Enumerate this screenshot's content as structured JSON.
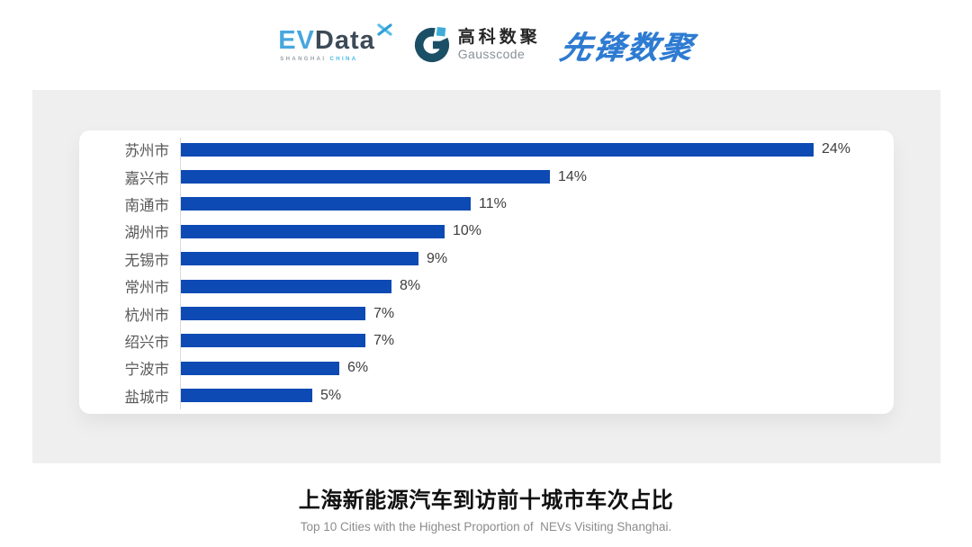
{
  "header": {
    "evdata": {
      "ev": "EV",
      "data": "Data",
      "sub1": "SHANGHAI ",
      "sub2": "CHINA"
    },
    "gausscode": {
      "cn": "高科数聚",
      "en": "Gausscode"
    },
    "xianfeng": {
      "text": "先锋数聚"
    }
  },
  "chart_data": {
    "type": "bar",
    "orientation": "horizontal",
    "title": "上海新能源汽车到访前十城市车次占比",
    "subtitle": "Top 10 Cities with the Highest Proportion of  NEVs Visiting Shanghai.",
    "categories": [
      "苏州市",
      "嘉兴市",
      "南通市",
      "湖州市",
      "无锡市",
      "常州市",
      "杭州市",
      "绍兴市",
      "宁波市",
      "盐城市"
    ],
    "values": [
      24,
      14,
      11,
      10,
      9,
      8,
      7,
      7,
      6,
      5
    ],
    "value_labels": [
      "24%",
      "14%",
      "11%",
      "10%",
      "9%",
      "8%",
      "7%",
      "7%",
      "6%",
      "5%"
    ],
    "xlim": [
      0,
      24
    ],
    "grid": false,
    "legend": false,
    "bar_color": "#0d4ab4",
    "axis_color": "#d9d9d9"
  },
  "footer": {
    "title": "上海新能源汽车到访前十城市车次占比",
    "subtitle": "Top 10 Cities with the Highest Proportion of  NEVs Visiting Shanghai."
  },
  "colors": {
    "bar": "#0d4ab4",
    "band_bg": "#efefef",
    "card_bg": "#ffffff",
    "category_label": "#595959",
    "value_label": "#3e3e3e",
    "title": "#111111",
    "subtitle": "#8c8c8c",
    "evdata_blue": "#47a7df",
    "evdata_dark": "#3d4a57",
    "gausscode_mark_dark": "#1b4f66",
    "gausscode_mark_light": "#40add8",
    "xianfeng_blue": "#2e7bd2"
  }
}
